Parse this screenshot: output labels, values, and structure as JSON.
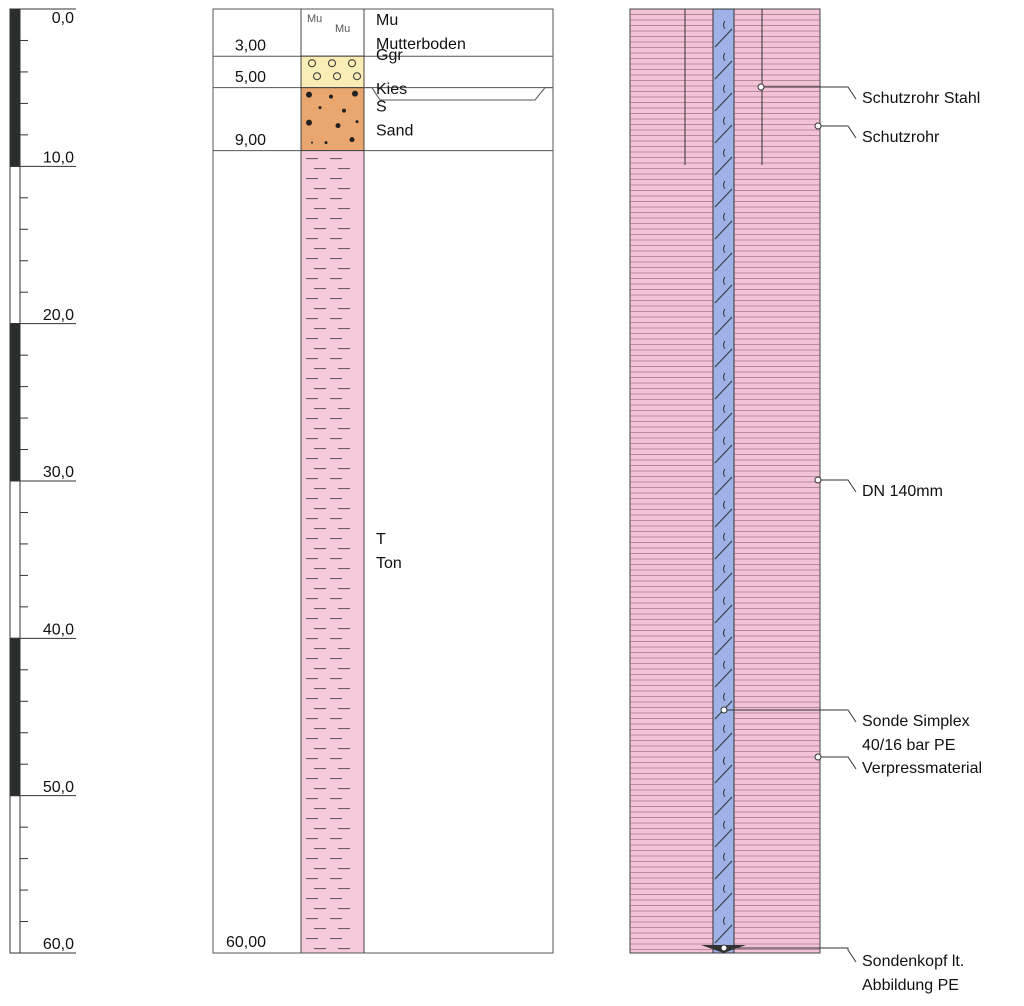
{
  "depth_scale": {
    "range": [
      0,
      60
    ],
    "ticks": [
      {
        "value": 0,
        "label": "0,0"
      },
      {
        "value": 10,
        "label": "10,0"
      },
      {
        "value": 20,
        "label": "20,0"
      },
      {
        "value": 30,
        "label": "30,0"
      },
      {
        "value": 40,
        "label": "40,0"
      },
      {
        "value": 50,
        "label": "50,0"
      },
      {
        "value": 60,
        "label": "60,0"
      }
    ]
  },
  "layers": [
    {
      "code": "Mu",
      "name": "Mutterboden",
      "bottom": {
        "value": 3,
        "label": "3,00"
      },
      "color": "#ffffff"
    },
    {
      "code": "Ggr",
      "name": "Kies",
      "bottom": {
        "value": 5,
        "label": "5,00"
      },
      "color": "#f9ecb4"
    },
    {
      "code": "S",
      "name": "Sand",
      "bottom": {
        "value": 9,
        "label": "9,00"
      },
      "color": "#e9a66e"
    },
    {
      "code": "T",
      "name": "Ton",
      "bottom": {
        "value": 60,
        "label": "60,00"
      },
      "color": "#f7c9dc"
    }
  ],
  "well": {
    "fill": "#f4c2d8",
    "pipe_color": "#9fb2e8",
    "annotations": [
      {
        "lines": [
          "Schutzrohr Stahl"
        ]
      },
      {
        "lines": [
          "Schutzrohr"
        ]
      },
      {
        "lines": [
          "DN 140mm"
        ]
      },
      {
        "lines": [
          "Sonde Simplex",
          "40/16 bar PE"
        ]
      },
      {
        "lines": [
          "Verpressmaterial"
        ]
      },
      {
        "lines": [
          "Sondenkopf lt.",
          "Abbildung PE"
        ]
      }
    ]
  }
}
